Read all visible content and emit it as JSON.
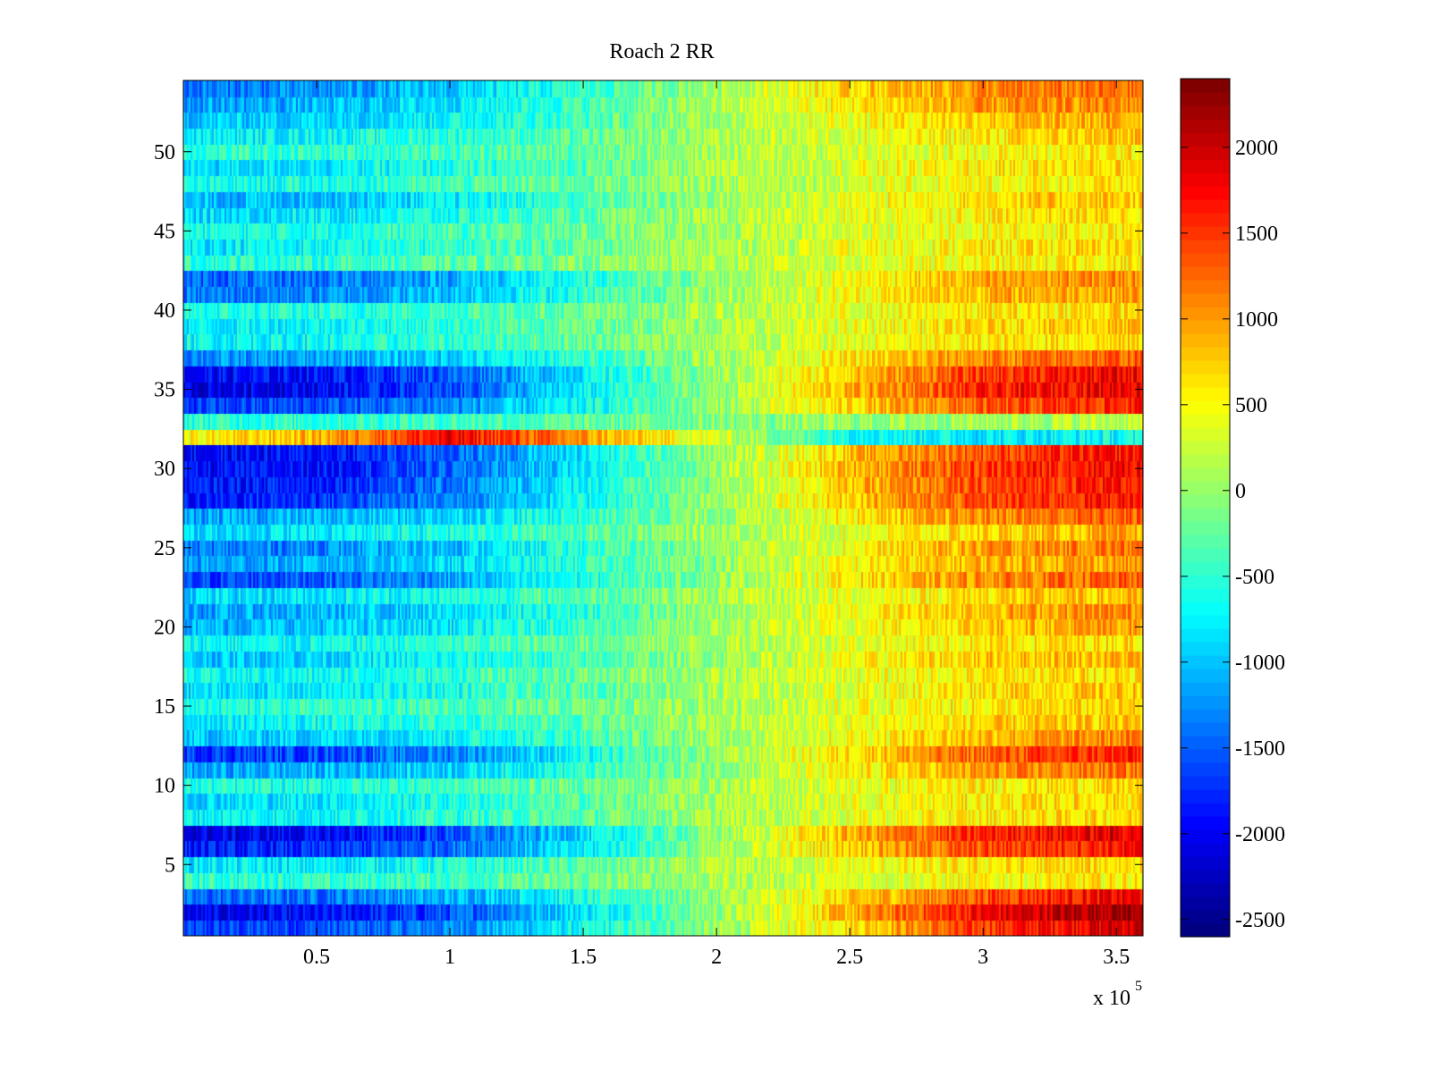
{
  "chart_data": {
    "type": "heatmap",
    "title": "Roach 2 RR",
    "xlabel": "",
    "ylabel": "",
    "x_multiplier_label": "x 10",
    "x_multiplier_exponent": "5",
    "xlim": [
      0,
      360000
    ],
    "ylim": [
      0.5,
      54.5
    ],
    "x_ticks": [
      50000,
      100000,
      150000,
      200000,
      250000,
      300000,
      350000
    ],
    "x_tick_labels": [
      "0.5",
      "1",
      "1.5",
      "2",
      "2.5",
      "3",
      "3.5"
    ],
    "y_ticks": [
      5,
      10,
      15,
      20,
      25,
      30,
      35,
      40,
      45,
      50
    ],
    "y_tick_labels": [
      "5",
      "10",
      "15",
      "20",
      "25",
      "30",
      "35",
      "40",
      "45",
      "50"
    ],
    "colormap": "jet",
    "clim": [
      -2600,
      2400
    ],
    "colorbar_ticks": [
      2000,
      1500,
      1000,
      500,
      0,
      -500,
      -1000,
      -1500,
      -2000,
      -2500
    ],
    "colorbar_tick_labels": [
      "2000",
      "1500",
      "1000",
      "500",
      "0",
      "-500",
      "-1000",
      "-1500",
      "-2000",
      "-2500"
    ],
    "grid": false,
    "rows": 54,
    "row_profile_x": [
      0,
      50000,
      100000,
      150000,
      200000,
      250000,
      300000,
      350000,
      360000
    ],
    "row_profiles": [
      {
        "row": 1,
        "values": [
          -1700,
          -1600,
          -1300,
          -700,
          0,
          700,
          1500,
          2000,
          2000
        ]
      },
      {
        "row": 2,
        "values": [
          -2100,
          -2000,
          -1600,
          -800,
          0,
          900,
          1800,
          2300,
          2300
        ]
      },
      {
        "row": 3,
        "values": [
          -1500,
          -1400,
          -1100,
          -600,
          0,
          700,
          1400,
          1800,
          1800
        ]
      },
      {
        "row": 4,
        "values": [
          -500,
          -500,
          -400,
          -200,
          100,
          350,
          500,
          600,
          600
        ]
      },
      {
        "row": 5,
        "values": [
          -800,
          -800,
          -600,
          -300,
          100,
          400,
          600,
          700,
          700
        ]
      },
      {
        "row": 6,
        "values": [
          -1900,
          -1800,
          -1400,
          -800,
          0,
          800,
          1400,
          1700,
          1700
        ]
      },
      {
        "row": 7,
        "values": [
          -2100,
          -2000,
          -1600,
          -900,
          0,
          900,
          1600,
          1900,
          1900
        ]
      },
      {
        "row": 8,
        "values": [
          -700,
          -700,
          -500,
          -300,
          100,
          400,
          600,
          700,
          700
        ]
      },
      {
        "row": 9,
        "values": [
          -900,
          -800,
          -600,
          -300,
          100,
          400,
          600,
          700,
          700
        ]
      },
      {
        "row": 10,
        "values": [
          -600,
          -600,
          -400,
          -200,
          100,
          400,
          600,
          700,
          700
        ]
      },
      {
        "row": 11,
        "values": [
          -1200,
          -1100,
          -900,
          -500,
          0,
          500,
          1000,
          1200,
          1200
        ]
      },
      {
        "row": 12,
        "values": [
          -1700,
          -1600,
          -1300,
          -700,
          0,
          700,
          1300,
          1600,
          1600
        ]
      },
      {
        "row": 13,
        "values": [
          -1000,
          -900,
          -700,
          -400,
          50,
          500,
          900,
          1100,
          1100
        ]
      },
      {
        "row": 14,
        "values": [
          -800,
          -700,
          -500,
          -300,
          100,
          400,
          700,
          800,
          800
        ]
      },
      {
        "row": 15,
        "values": [
          -600,
          -500,
          -400,
          -200,
          100,
          400,
          600,
          700,
          700
        ]
      },
      {
        "row": 16,
        "values": [
          -900,
          -800,
          -600,
          -300,
          100,
          400,
          700,
          800,
          800
        ]
      },
      {
        "row": 17,
        "values": [
          -700,
          -700,
          -500,
          -200,
          100,
          400,
          600,
          700,
          700
        ]
      },
      {
        "row": 18,
        "values": [
          -1000,
          -900,
          -700,
          -400,
          50,
          450,
          800,
          900,
          900
        ]
      },
      {
        "row": 19,
        "values": [
          -700,
          -700,
          -500,
          -200,
          100,
          400,
          600,
          700,
          700
        ]
      },
      {
        "row": 20,
        "values": [
          -1100,
          -1000,
          -800,
          -400,
          50,
          450,
          800,
          1000,
          1000
        ]
      },
      {
        "row": 21,
        "values": [
          -1200,
          -1100,
          -900,
          -500,
          0,
          500,
          900,
          1100,
          1100
        ]
      },
      {
        "row": 22,
        "values": [
          -900,
          -800,
          -600,
          -300,
          100,
          400,
          700,
          800,
          800
        ]
      },
      {
        "row": 23,
        "values": [
          -1700,
          -1500,
          -1200,
          -600,
          0,
          600,
          1100,
          1300,
          1300
        ]
      },
      {
        "row": 24,
        "values": [
          -1200,
          -1100,
          -900,
          -500,
          0,
          500,
          900,
          1000,
          1000
        ]
      },
      {
        "row": 25,
        "values": [
          -1400,
          -1300,
          -1000,
          -500,
          0,
          500,
          1000,
          1200,
          1200
        ]
      },
      {
        "row": 26,
        "values": [
          -900,
          -800,
          -600,
          -300,
          100,
          400,
          700,
          900,
          900
        ]
      },
      {
        "row": 27,
        "values": [
          -1200,
          -1100,
          -900,
          -500,
          0,
          600,
          1100,
          1300,
          1300
        ]
      },
      {
        "row": 28,
        "values": [
          -1900,
          -1700,
          -1300,
          -700,
          0,
          800,
          1400,
          1700,
          1700
        ]
      },
      {
        "row": 29,
        "values": [
          -1900,
          -1800,
          -1400,
          -700,
          0,
          800,
          1400,
          1700,
          1700
        ]
      },
      {
        "row": 30,
        "values": [
          -2000,
          -1900,
          -1500,
          -800,
          0,
          900,
          1500,
          1800,
          1800
        ]
      },
      {
        "row": 31,
        "values": [
          -2000,
          -1900,
          -1500,
          -800,
          0,
          800,
          1400,
          1700,
          1700
        ]
      },
      {
        "row": 32,
        "values": [
          500,
          900,
          1800,
          1000,
          300,
          -600,
          -800,
          -700,
          -700
        ]
      },
      {
        "row": 33,
        "values": [
          -500,
          -500,
          -400,
          -300,
          -100,
          0,
          100,
          200,
          200
        ]
      },
      {
        "row": 34,
        "values": [
          -1700,
          -1600,
          -1300,
          -700,
          0,
          700,
          1300,
          1600,
          1600
        ]
      },
      {
        "row": 35,
        "values": [
          -2100,
          -2000,
          -1600,
          -800,
          0,
          900,
          1600,
          1900,
          1900
        ]
      },
      {
        "row": 36,
        "values": [
          -2000,
          -1900,
          -1500,
          -800,
          0,
          800,
          1500,
          1800,
          1800
        ]
      },
      {
        "row": 37,
        "values": [
          -1300,
          -1200,
          -900,
          -500,
          100,
          600,
          1100,
          1300,
          1300
        ]
      },
      {
        "row": 38,
        "values": [
          -700,
          -700,
          -500,
          -200,
          100,
          400,
          600,
          700,
          700
        ]
      },
      {
        "row": 39,
        "values": [
          -800,
          -700,
          -500,
          -200,
          100,
          400,
          700,
          800,
          800
        ]
      },
      {
        "row": 40,
        "values": [
          -600,
          -600,
          -400,
          -200,
          100,
          400,
          600,
          700,
          700
        ]
      },
      {
        "row": 41,
        "values": [
          -1400,
          -1300,
          -1000,
          -500,
          50,
          500,
          900,
          1000,
          1000
        ]
      },
      {
        "row": 42,
        "values": [
          -1500,
          -1400,
          -1100,
          -600,
          0,
          500,
          900,
          1100,
          1100
        ]
      },
      {
        "row": 43,
        "values": [
          -500,
          -500,
          -300,
          -100,
          150,
          350,
          500,
          600,
          600
        ]
      },
      {
        "row": 44,
        "values": [
          -800,
          -700,
          -500,
          -200,
          100,
          400,
          600,
          700,
          700
        ]
      },
      {
        "row": 45,
        "values": [
          -600,
          -600,
          -400,
          -200,
          100,
          300,
          500,
          600,
          600
        ]
      },
      {
        "row": 46,
        "values": [
          -900,
          -800,
          -600,
          -300,
          100,
          400,
          600,
          700,
          700
        ]
      },
      {
        "row": 47,
        "values": [
          -1100,
          -1000,
          -800,
          -400,
          50,
          400,
          700,
          800,
          800
        ]
      },
      {
        "row": 48,
        "values": [
          -700,
          -600,
          -400,
          -200,
          100,
          300,
          500,
          600,
          600
        ]
      },
      {
        "row": 49,
        "values": [
          -900,
          -800,
          -600,
          -300,
          100,
          400,
          600,
          700,
          700
        ]
      },
      {
        "row": 50,
        "values": [
          -500,
          -500,
          -400,
          -200,
          100,
          300,
          500,
          600,
          600
        ]
      },
      {
        "row": 51,
        "values": [
          -800,
          -700,
          -500,
          -300,
          100,
          400,
          600,
          800,
          800
        ]
      },
      {
        "row": 52,
        "values": [
          -1000,
          -900,
          -700,
          -400,
          100,
          500,
          800,
          900,
          900
        ]
      },
      {
        "row": 53,
        "values": [
          -1200,
          -1100,
          -800,
          -400,
          100,
          600,
          1000,
          1100,
          1100
        ]
      },
      {
        "row": 54,
        "values": [
          -1400,
          -1300,
          -1000,
          -500,
          100,
          700,
          1100,
          1200,
          1200
        ]
      }
    ]
  }
}
